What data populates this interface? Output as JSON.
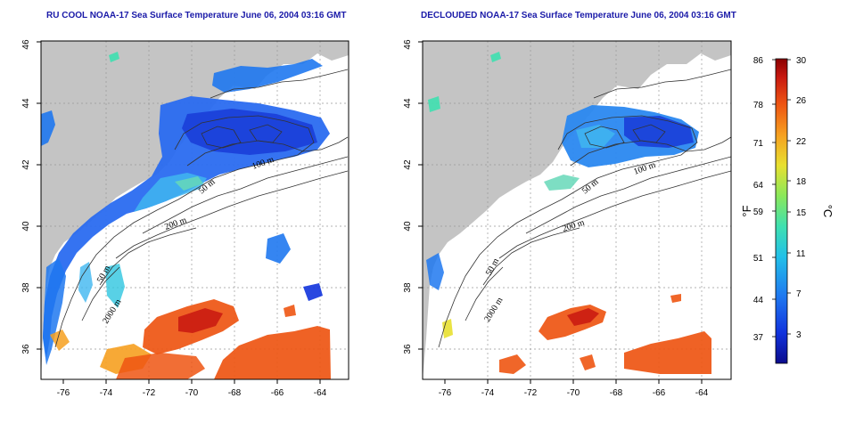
{
  "titles": {
    "left": "RU COOL NOAA-17 Sea Surface Temperature June 06, 2004 03:16 GMT",
    "right": "DECLOUDED NOAA-17 Sea Surface Temperature June 06, 2004 03:16 GMT"
  },
  "axes": {
    "lon_ticks": [
      -76,
      -74,
      -72,
      -70,
      -68,
      -66,
      -64
    ],
    "lat_ticks": [
      36,
      38,
      40,
      42,
      44,
      46
    ],
    "lon_range": [
      -77,
      -63
    ],
    "lat_range": [
      35,
      46
    ]
  },
  "contour_labels": {
    "left": [
      "50 m",
      "100 m",
      "200 m",
      "50 m",
      "2000 m"
    ],
    "right": [
      "50 m",
      "100 m",
      "200 m",
      "50 m",
      "2000 m"
    ]
  },
  "colorbar": {
    "fahrenheit_ticks": [
      "86",
      "78",
      "71",
      "64",
      "59",
      "51",
      "44",
      "37"
    ],
    "celsius_ticks": [
      "30",
      "26",
      "22",
      "18",
      "15",
      "11",
      "7",
      "3"
    ],
    "unit_left": "°F",
    "unit_right": "°C",
    "colors": [
      "#0b0b8c",
      "#1133dd",
      "#1f78f0",
      "#22c0e8",
      "#3fe0b0",
      "#8ae85a",
      "#e8e030",
      "#f6a020",
      "#ee5512",
      "#c81810",
      "#8a0000"
    ]
  },
  "colors": {
    "land": "#c4c4c4",
    "title": "#1a1aa8",
    "no_data": "#ffffff"
  }
}
